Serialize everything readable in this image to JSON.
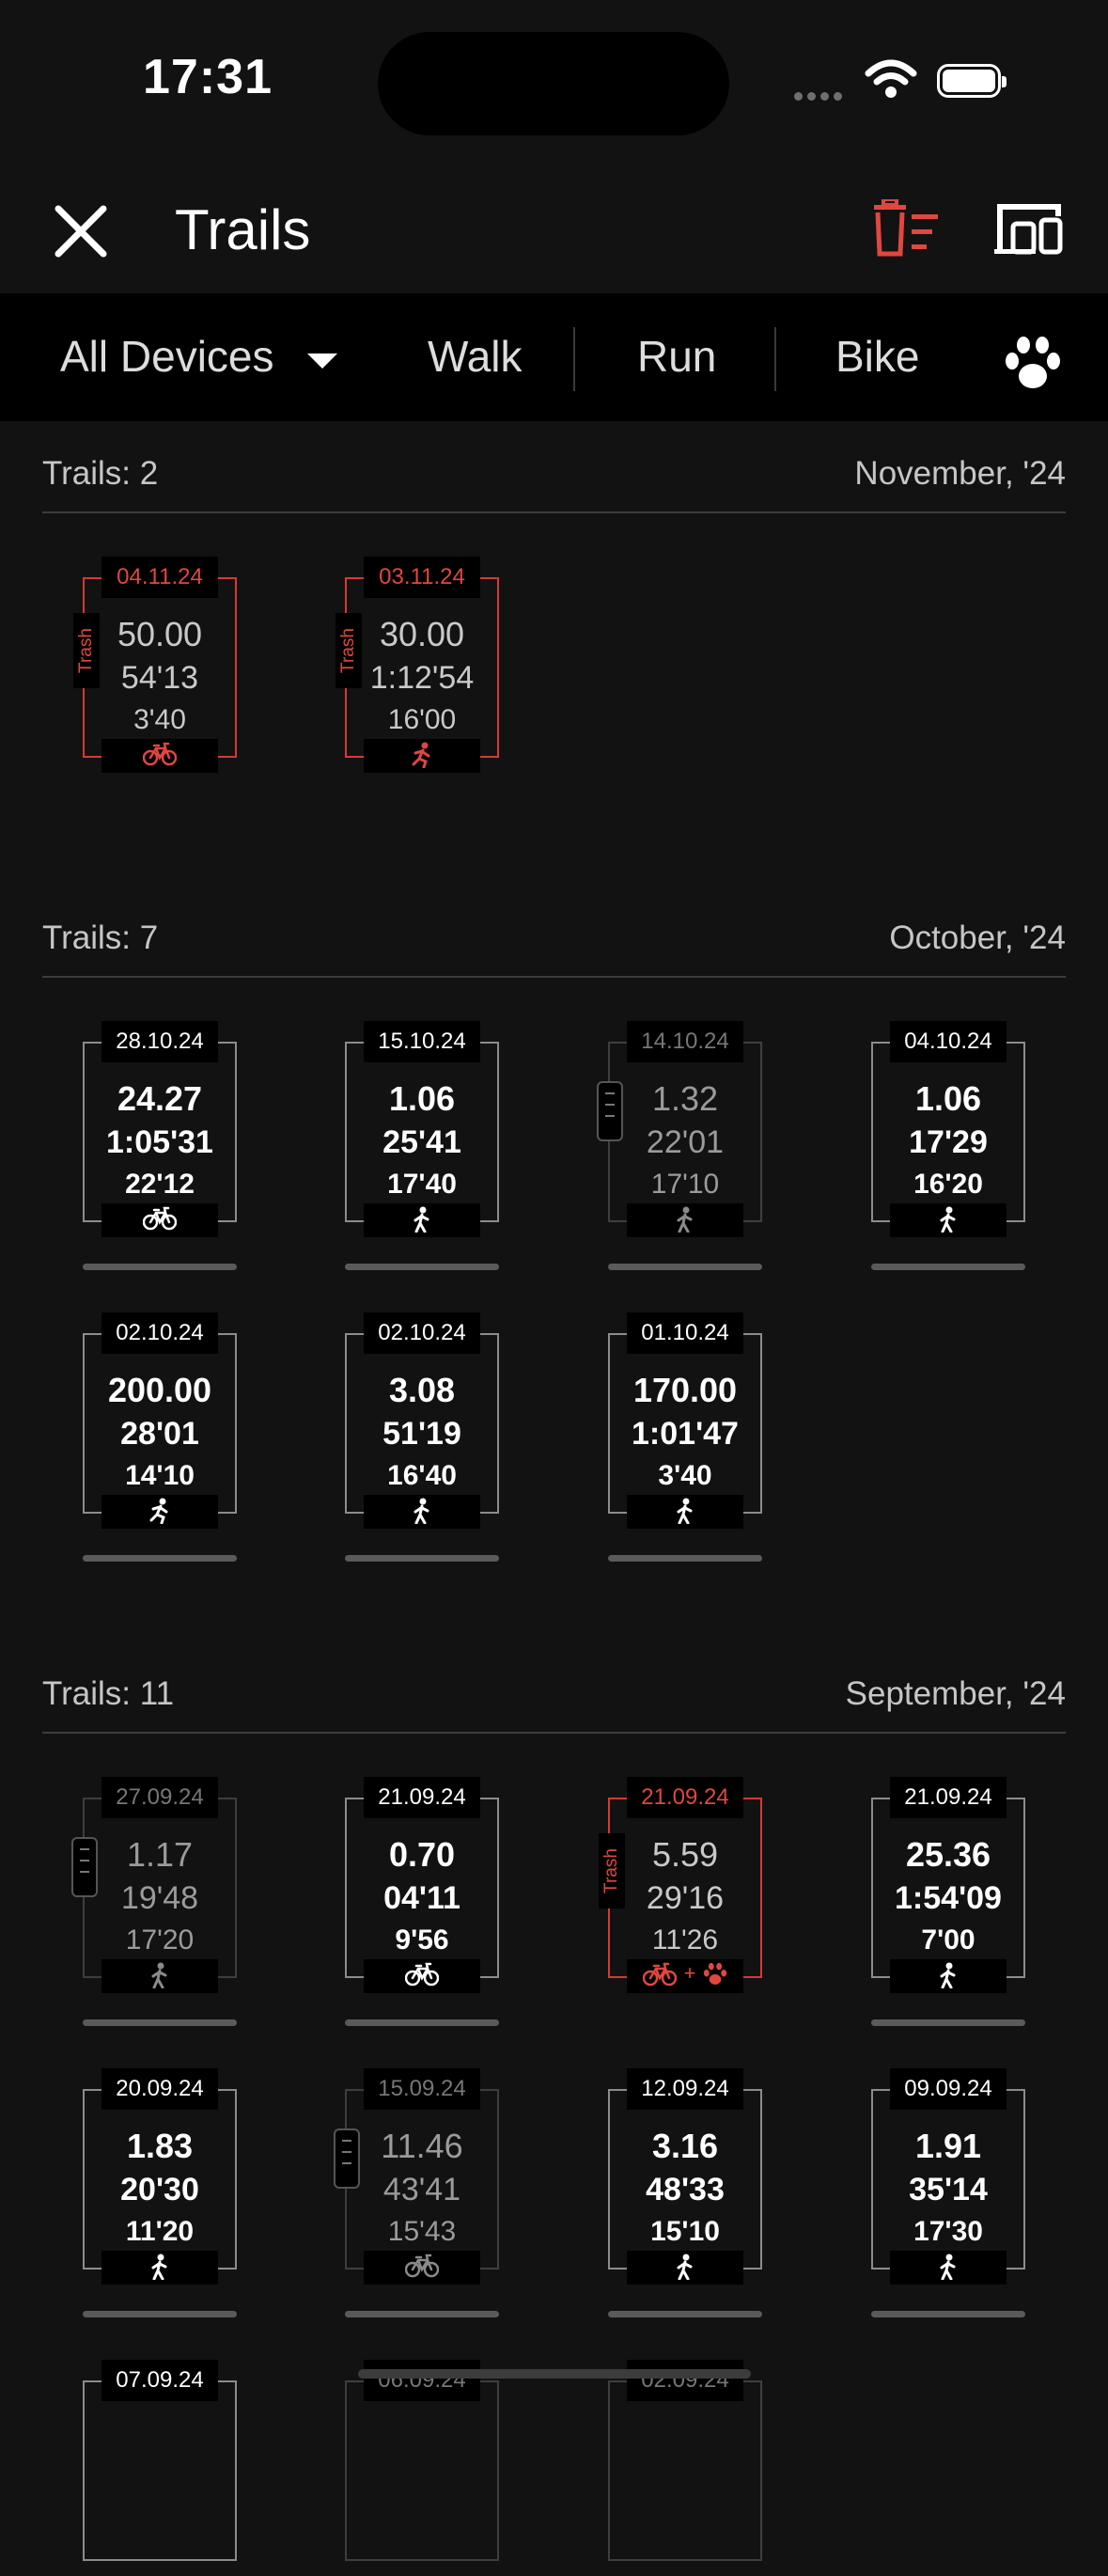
{
  "status": {
    "time": "17:31"
  },
  "header": {
    "title": "Trails"
  },
  "filters": {
    "device": "All Devices",
    "tabs": [
      "Walk",
      "Run",
      "Bike"
    ]
  },
  "colors": {
    "accent_red": "#e0473f",
    "background": "#131213",
    "card_border": "#8c8c8c"
  },
  "trash_label": "Trash",
  "sections": [
    {
      "count_label": "Trails: 2",
      "month": "November, '24"
    },
    {
      "count_label": "Trails: 7",
      "month": "October, '24"
    },
    {
      "count_label": "Trails: 11",
      "month": "September, '24"
    }
  ],
  "trails": [
    {
      "date": "04.11.24",
      "distance": "50.00",
      "duration": "54'13",
      "pace": "3'40",
      "activity": "bike",
      "state": "trash"
    },
    {
      "date": "03.11.24",
      "distance": "30.00",
      "duration": "1:12'54",
      "pace": "16'00",
      "activity": "run",
      "state": "trash"
    },
    {
      "date": "28.10.24",
      "distance": "24.27",
      "duration": "1:05'31",
      "pace": "22'12",
      "activity": "bike",
      "state": "normal"
    },
    {
      "date": "15.10.24",
      "distance": "1.06",
      "duration": "25'41",
      "pace": "17'40",
      "activity": "walk",
      "state": "normal"
    },
    {
      "date": "14.10.24",
      "distance": "1.32",
      "duration": "22'01",
      "pace": "17'10",
      "activity": "walk",
      "state": "merged"
    },
    {
      "date": "04.10.24",
      "distance": "1.06",
      "duration": "17'29",
      "pace": "16'20",
      "activity": "walk",
      "state": "normal"
    },
    {
      "date": "02.10.24",
      "distance": "200.00",
      "duration": "28'01",
      "pace": "14'10",
      "activity": "run",
      "state": "normal"
    },
    {
      "date": "02.10.24",
      "distance": "3.08",
      "duration": "51'19",
      "pace": "16'40",
      "activity": "walk",
      "state": "normal"
    },
    {
      "date": "01.10.24",
      "distance": "170.00",
      "duration": "1:01'47",
      "pace": "3'40",
      "activity": "walk",
      "state": "normal"
    },
    {
      "date": "27.09.24",
      "distance": "1.17",
      "duration": "19'48",
      "pace": "17'20",
      "activity": "walk",
      "state": "merged"
    },
    {
      "date": "21.09.24",
      "distance": "0.70",
      "duration": "04'11",
      "pace": "9'56",
      "activity": "bike",
      "state": "normal"
    },
    {
      "date": "21.09.24",
      "distance": "5.59",
      "duration": "29'16",
      "pace": "11'26",
      "activity": "bike+pet",
      "state": "trash"
    },
    {
      "date": "21.09.24",
      "distance": "25.36",
      "duration": "1:54'09",
      "pace": "7'00",
      "activity": "walk",
      "state": "normal"
    },
    {
      "date": "20.09.24",
      "distance": "1.83",
      "duration": "20'30",
      "pace": "11'20",
      "activity": "walk",
      "state": "normal"
    },
    {
      "date": "15.09.24",
      "distance": "11.46",
      "duration": "43'41",
      "pace": "15'43",
      "activity": "bike",
      "state": "merged"
    },
    {
      "date": "12.09.24",
      "distance": "3.16",
      "duration": "48'33",
      "pace": "15'10",
      "activity": "walk",
      "state": "normal"
    },
    {
      "date": "09.09.24",
      "distance": "1.91",
      "duration": "35'14",
      "pace": "17'30",
      "activity": "walk",
      "state": "normal"
    },
    {
      "date": "07.09.24",
      "activity": "unknown",
      "state": "normal"
    },
    {
      "date": "06.09.24",
      "activity": "unknown",
      "state": "merged"
    },
    {
      "date": "02.09.24",
      "activity": "unknown",
      "state": "merged"
    }
  ]
}
